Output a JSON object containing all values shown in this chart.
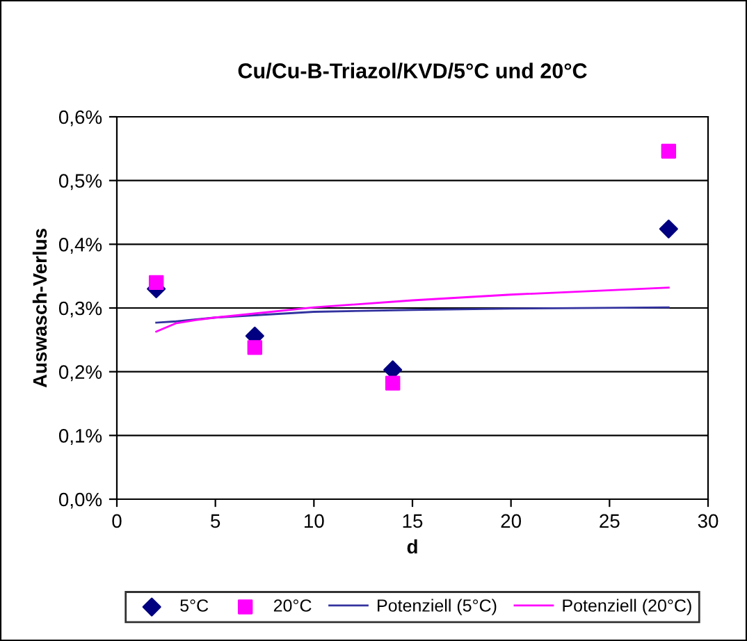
{
  "chart_data": {
    "type": "scatter",
    "title": "Cu/Cu-B-Triazol/KVD/5°C und 20°C",
    "xlabel": "d",
    "ylabel": "Auswasch-Verlus",
    "series": [
      {
        "name": "5°C",
        "type": "scatter",
        "marker": "diamond",
        "color": "#000080",
        "x": [
          2,
          7,
          14,
          28
        ],
        "values": [
          0.33,
          0.256,
          0.203,
          0.424
        ]
      },
      {
        "name": "20°C",
        "type": "scatter",
        "marker": "square",
        "color": "#ff00ff",
        "x": [
          2,
          7,
          14,
          28
        ],
        "values": [
          0.34,
          0.238,
          0.182,
          0.546
        ]
      },
      {
        "name": "Potenziell (5°C)",
        "type": "line",
        "marker": "none",
        "color": "#3333a0",
        "x": [
          2,
          3,
          5,
          10,
          15,
          20,
          28
        ],
        "values": [
          0.277,
          0.279,
          0.285,
          0.294,
          0.297,
          0.299,
          0.301
        ]
      },
      {
        "name": "Potenziell (20°C)",
        "type": "line",
        "marker": "none",
        "color": "#ff00ff",
        "x": [
          2,
          3,
          4,
          5,
          10,
          15,
          20,
          28
        ],
        "values": [
          0.263,
          0.276,
          0.281,
          0.285,
          0.301,
          0.312,
          0.321,
          0.332
        ]
      }
    ],
    "xlim": [
      0,
      30
    ],
    "xticks": [
      0,
      5,
      10,
      15,
      20,
      25,
      30
    ],
    "ylim": [
      0,
      0.6
    ],
    "yticks": [
      {
        "value": 0,
        "label": "0,0%"
      },
      {
        "value": 0.1,
        "label": "0,1%"
      },
      {
        "value": 0.2,
        "label": "0,2%"
      },
      {
        "value": 0.3,
        "label": "0,3%"
      },
      {
        "value": 0.4,
        "label": "0,4%"
      },
      {
        "value": 0.5,
        "label": "0,5%"
      },
      {
        "value": 0.6,
        "label": "0,6%"
      }
    ],
    "grid": "y",
    "legend": "bottom"
  }
}
